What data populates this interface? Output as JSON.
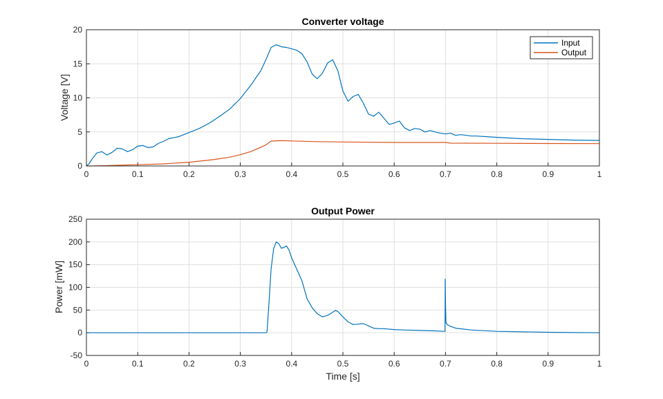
{
  "chart_data": [
    {
      "type": "line",
      "title": "Converter voltage",
      "xlabel": "",
      "ylabel": "Voltage [V]",
      "xlim": [
        0,
        1
      ],
      "ylim": [
        0,
        20
      ],
      "xticks": [
        "0",
        "0.1",
        "0.2",
        "0.3",
        "0.4",
        "0.5",
        "0.6",
        "0.7",
        "0.8",
        "0.9",
        "1"
      ],
      "yticks": [
        "0",
        "5",
        "10",
        "15",
        "20"
      ],
      "grid": true,
      "legend": "top-right",
      "series": [
        {
          "name": "Input",
          "color": "#0072BD",
          "x": [
            0,
            0.005,
            0.01,
            0.02,
            0.03,
            0.04,
            0.05,
            0.06,
            0.07,
            0.08,
            0.09,
            0.1,
            0.11,
            0.12,
            0.13,
            0.14,
            0.15,
            0.16,
            0.18,
            0.2,
            0.22,
            0.24,
            0.26,
            0.28,
            0.3,
            0.32,
            0.34,
            0.35,
            0.36,
            0.37,
            0.38,
            0.39,
            0.4,
            0.41,
            0.42,
            0.43,
            0.44,
            0.45,
            0.46,
            0.47,
            0.48,
            0.49,
            0.5,
            0.51,
            0.52,
            0.53,
            0.54,
            0.55,
            0.56,
            0.57,
            0.58,
            0.59,
            0.6,
            0.61,
            0.62,
            0.63,
            0.64,
            0.65,
            0.66,
            0.67,
            0.68,
            0.69,
            0.7,
            0.71,
            0.72,
            0.73,
            0.74,
            0.75,
            0.76,
            0.78,
            0.8,
            0.85,
            0.9,
            0.95,
            1.0
          ],
          "y": [
            0,
            0.3,
            0.9,
            1.9,
            2.1,
            1.6,
            2.0,
            2.6,
            2.5,
            2.1,
            2.4,
            2.9,
            3.0,
            2.7,
            2.8,
            3.3,
            3.6,
            4.0,
            4.3,
            4.9,
            5.5,
            6.3,
            7.3,
            8.4,
            9.9,
            11.8,
            14.0,
            15.6,
            17.4,
            17.8,
            17.5,
            17.4,
            17.2,
            17.0,
            16.5,
            15.3,
            13.5,
            12.8,
            13.6,
            15.1,
            15.6,
            14.0,
            11.0,
            9.5,
            10.2,
            10.5,
            9.2,
            7.6,
            7.3,
            7.9,
            7.0,
            6.1,
            6.3,
            6.6,
            5.6,
            5.2,
            5.5,
            5.4,
            5.0,
            5.2,
            5.0,
            4.8,
            4.7,
            4.8,
            4.5,
            4.6,
            4.5,
            4.4,
            4.4,
            4.3,
            4.2,
            4.0,
            3.9,
            3.8,
            3.75
          ]
        },
        {
          "name": "Output",
          "color": "#D95319",
          "x": [
            0,
            0.03,
            0.06,
            0.1,
            0.15,
            0.2,
            0.25,
            0.28,
            0.3,
            0.32,
            0.34,
            0.35,
            0.36,
            0.38,
            0.4,
            0.45,
            0.5,
            0.6,
            0.7,
            0.71,
            0.8,
            0.9,
            1.0
          ],
          "y": [
            0,
            0.03,
            0.1,
            0.18,
            0.3,
            0.55,
            0.95,
            1.3,
            1.65,
            2.1,
            2.75,
            3.1,
            3.65,
            3.72,
            3.68,
            3.57,
            3.52,
            3.45,
            3.45,
            3.35,
            3.33,
            3.3,
            3.28
          ]
        }
      ]
    },
    {
      "type": "line",
      "title": "Output Power",
      "xlabel": "Time [s]",
      "ylabel": "Power [mW]",
      "xlim": [
        0,
        1
      ],
      "ylim": [
        -50,
        250
      ],
      "xticks": [
        "0",
        "0.1",
        "0.2",
        "0.3",
        "0.4",
        "0.5",
        "0.6",
        "0.7",
        "0.8",
        "0.9",
        "1"
      ],
      "yticks": [
        "-50",
        "0",
        "50",
        "100",
        "150",
        "200",
        "250"
      ],
      "grid": true,
      "series": [
        {
          "color": "#0072BD",
          "x": [
            0,
            0.1,
            0.2,
            0.3,
            0.35,
            0.352,
            0.355,
            0.36,
            0.365,
            0.37,
            0.375,
            0.38,
            0.385,
            0.39,
            0.395,
            0.4,
            0.41,
            0.42,
            0.43,
            0.44,
            0.45,
            0.46,
            0.47,
            0.48,
            0.485,
            0.49,
            0.5,
            0.51,
            0.52,
            0.53,
            0.54,
            0.55,
            0.56,
            0.57,
            0.58,
            0.6,
            0.62,
            0.65,
            0.68,
            0.699,
            0.6995,
            0.7,
            0.701,
            0.703,
            0.71,
            0.72,
            0.75,
            0.8,
            0.9,
            1.0
          ],
          "y": [
            0,
            0,
            0,
            0,
            0,
            2,
            50,
            140,
            185,
            200,
            196,
            186,
            188,
            191,
            182,
            165,
            140,
            115,
            75,
            55,
            42,
            35,
            38,
            45,
            49,
            47,
            35,
            24,
            18,
            19,
            20,
            15,
            10,
            9,
            9,
            7,
            6,
            5,
            4,
            3,
            118,
            65,
            22,
            18,
            14,
            10,
            6,
            3,
            1,
            0
          ]
        }
      ]
    }
  ]
}
